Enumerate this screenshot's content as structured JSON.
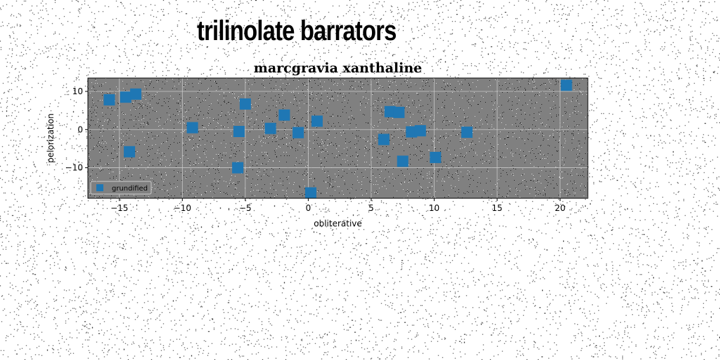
{
  "page": {
    "title": "trilinolate barrators"
  },
  "chart_data": {
    "type": "scatter",
    "title": "marcgravia xanthaline",
    "xlabel": "obliterative",
    "ylabel": "pelorization",
    "xlim": [
      -17.5,
      22.2
    ],
    "ylim": [
      -18,
      13.5
    ],
    "xticks": [
      -15,
      -10,
      -5,
      0,
      5,
      10,
      15,
      20
    ],
    "yticks": [
      -10,
      0,
      10
    ],
    "grid": true,
    "legend_position": "lower-left",
    "series": [
      {
        "name": "grundified",
        "color": "#1f77b4",
        "marker": "square",
        "points": [
          {
            "x": -15.8,
            "y": 7.8
          },
          {
            "x": -14.5,
            "y": 8.5
          },
          {
            "x": -13.7,
            "y": 9.3
          },
          {
            "x": -14.2,
            "y": -5.8
          },
          {
            "x": -9.2,
            "y": 0.5
          },
          {
            "x": -5.5,
            "y": -0.5
          },
          {
            "x": -5.0,
            "y": 6.7
          },
          {
            "x": -5.6,
            "y": -10.0
          },
          {
            "x": -3.0,
            "y": 0.3
          },
          {
            "x": -1.9,
            "y": 3.8
          },
          {
            "x": -0.8,
            "y": -0.8
          },
          {
            "x": 0.7,
            "y": 2.2
          },
          {
            "x": 0.2,
            "y": -16.6
          },
          {
            "x": 6.0,
            "y": -2.6
          },
          {
            "x": 6.5,
            "y": 4.7
          },
          {
            "x": 7.2,
            "y": 4.5
          },
          {
            "x": 7.5,
            "y": -8.3
          },
          {
            "x": 8.2,
            "y": -0.6
          },
          {
            "x": 8.9,
            "y": -0.3
          },
          {
            "x": 10.1,
            "y": -7.3
          },
          {
            "x": 12.6,
            "y": -0.7
          },
          {
            "x": 20.5,
            "y": 11.6
          }
        ]
      }
    ]
  }
}
